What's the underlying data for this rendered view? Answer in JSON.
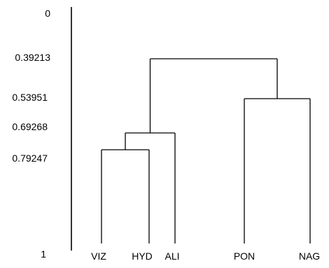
{
  "dendrogram": {
    "axis": {
      "ticks": [
        {
          "value": 0,
          "label": "0"
        },
        {
          "value": 0.39213,
          "label": "0.39213"
        },
        {
          "value": 0.53951,
          "label": "0.53951"
        },
        {
          "value": 0.69268,
          "label": "0.69268"
        },
        {
          "value": 0.79247,
          "label": "0.79247"
        },
        {
          "value": 1,
          "label": "1"
        }
      ]
    },
    "leaves": [
      "VIZ",
      "HYD",
      "ALI",
      "PON",
      "NAG"
    ],
    "merges": [
      {
        "members": [
          "VIZ",
          "HYD"
        ],
        "level": 0.79247
      },
      {
        "members": [
          "VIZ-HYD",
          "ALI"
        ],
        "level": 0.69268
      },
      {
        "members": [
          "PON",
          "NAG"
        ],
        "level": 0.53951
      },
      {
        "members": [
          "VIZ-HYD-ALI",
          "PON-NAG"
        ],
        "level": 0.39213
      }
    ]
  }
}
